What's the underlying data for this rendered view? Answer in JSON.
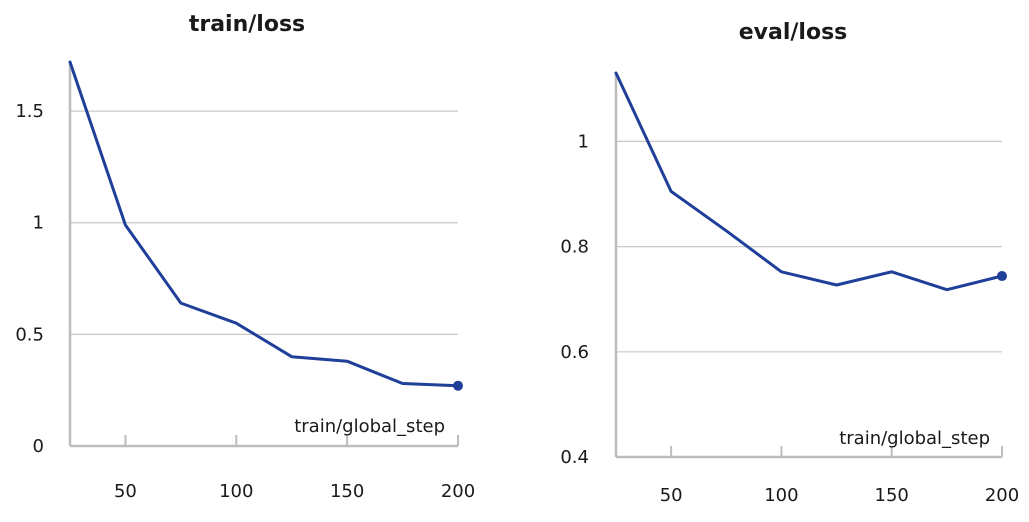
{
  "chart_data": [
    {
      "type": "line",
      "title": "train/loss",
      "xlabel": "train/global_step",
      "ylabel": "",
      "xlim": [
        25,
        200
      ],
      "ylim": [
        0,
        1.72
      ],
      "xticks": [
        50,
        100,
        150,
        200
      ],
      "yticks": [
        0,
        0.5,
        1,
        1.5
      ],
      "ytick_labels": [
        "0",
        "0.5",
        "1",
        "1.5"
      ],
      "grid": true,
      "colors": {
        "line": "#1f3f99",
        "grid": "#c8c8c8",
        "axis": "#bdbdbd"
      },
      "series": [
        {
          "x": [
            25,
            50,
            75,
            100,
            125,
            150,
            175,
            200
          ],
          "y": [
            1.72,
            0.99,
            0.64,
            0.55,
            0.4,
            0.38,
            0.28,
            0.27
          ]
        }
      ]
    },
    {
      "type": "line",
      "title": "eval/loss",
      "xlabel": "train/global_step",
      "ylabel": "",
      "xlim": [
        25,
        200
      ],
      "ylim": [
        0.4,
        1.13
      ],
      "xticks": [
        50,
        100,
        150,
        200
      ],
      "yticks": [
        0.4,
        0.6,
        0.8,
        1
      ],
      "ytick_labels": [
        "0.4",
        "0.6",
        "0.8",
        "1"
      ],
      "grid": true,
      "colors": {
        "line": "#1f3f99",
        "grid": "#c8c8c8",
        "axis": "#bdbdbd"
      },
      "series": [
        {
          "x": [
            25,
            50,
            75,
            100,
            125,
            150,
            175,
            200
          ],
          "y": [
            1.13,
            0.905,
            0.83,
            0.752,
            0.727,
            0.752,
            0.718,
            0.744
          ]
        }
      ]
    }
  ]
}
